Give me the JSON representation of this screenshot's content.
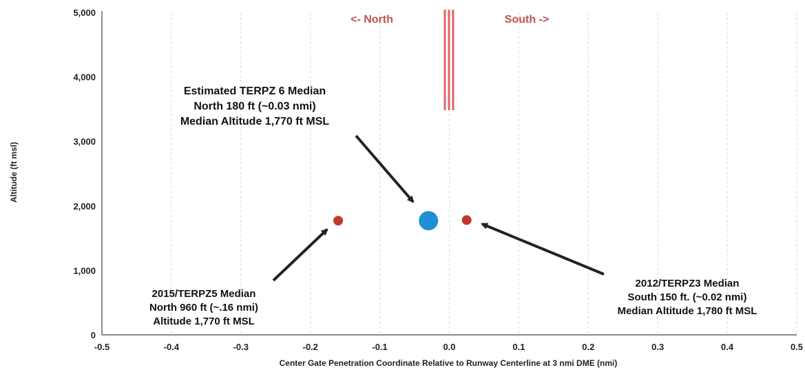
{
  "chart_data": {
    "type": "scatter",
    "xlabel": "Center Gate Penetration Coordinate Relative to Runway Centerline at 3 nmi DME (nmi)",
    "ylabel": "Altitude (ft msl)",
    "xlim": [
      -0.5,
      0.5
    ],
    "ylim": [
      0,
      5000
    ],
    "x_ticks": [
      "-0.5",
      "-0.4",
      "-0.3",
      "-0.2",
      "-0.1",
      "0.0",
      "0.1",
      "0.2",
      "0.3",
      "0.4",
      "0.5"
    ],
    "y_ticks": [
      "0",
      "1,000",
      "2,000",
      "3,000",
      "4,000",
      "5,000"
    ],
    "grid": "vertical dashed",
    "direction_labels": {
      "north": "<- North",
      "south": "South ->"
    },
    "points": [
      {
        "x": -0.16,
        "y": 1770,
        "color": "#c0392b",
        "size": "small"
      },
      {
        "x": -0.03,
        "y": 1770,
        "color": "#1f8fd6",
        "size": "large"
      },
      {
        "x": 0.025,
        "y": 1780,
        "color": "#c0392b",
        "size": "small"
      }
    ],
    "annotations": [
      {
        "lines": [
          "Estimated TERPZ 6 Median",
          "North 180 ft (~0.03 nmi)",
          "Median Altitude 1,770 ft MSL"
        ]
      },
      {
        "lines": [
          "2015/TERPZ5 Median",
          "North 960 ft (~.16 nmi)",
          "Altitude 1,770 ft MSL"
        ]
      },
      {
        "lines": [
          "2012/TERPZ3 Median",
          "South 150 ft.  (~0.02 nmi)",
          "Median Altitude 1,780 ft MSL"
        ]
      }
    ],
    "colors": {
      "centerline": "#e06666",
      "direction_text": "#c0504d",
      "arrow": "#222222"
    }
  }
}
